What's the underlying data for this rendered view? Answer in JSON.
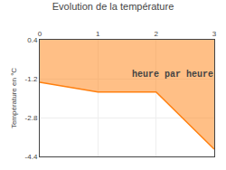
{
  "chart_data": {
    "type": "area",
    "title": "Evolution de la température",
    "y_label": "Température en °C",
    "x": [
      0,
      1,
      2,
      3
    ],
    "values": [
      -1.35,
      -1.75,
      -1.75,
      -4.1
    ],
    "xlim": [
      0,
      3
    ],
    "ylim": [
      -4.4,
      0.4
    ],
    "xticks": [
      0,
      1,
      2,
      3
    ],
    "yticks": [
      0.4,
      -1.2,
      -2.8,
      -4.4
    ],
    "grid": true,
    "annotations": [
      {
        "text": "heure par heure",
        "x": 1.55,
        "y": -1.3
      }
    ]
  }
}
